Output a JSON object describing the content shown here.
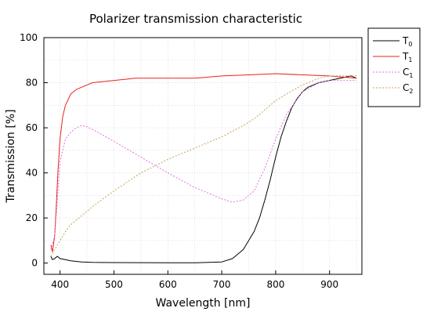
{
  "chart_data": {
    "type": "line",
    "title": "Polarizer transmission characteristic",
    "xlabel": "Wavelength [nm]",
    "ylabel": "Transmission [%]",
    "xlim": [
      370,
      960
    ],
    "ylim": [
      -5,
      100
    ],
    "x_ticks": [
      400,
      500,
      600,
      700,
      800,
      900
    ],
    "y_ticks": [
      0,
      20,
      40,
      60,
      80,
      100
    ],
    "grid": true,
    "legend_position": "right",
    "series": [
      {
        "name": "T0",
        "name_main": "T",
        "name_sub": "0",
        "color": "#000000",
        "dash": "solid",
        "x": [
          383,
          386,
          390,
          395,
          400,
          410,
          420,
          440,
          460,
          500,
          600,
          650,
          700,
          720,
          740,
          760,
          770,
          780,
          790,
          800,
          810,
          820,
          830,
          840,
          850,
          860,
          870,
          880,
          900,
          920,
          940,
          950
        ],
        "y": [
          3,
          1.5,
          2,
          3,
          2,
          1.5,
          1,
          0.5,
          0.3,
          0.2,
          0.1,
          0.1,
          0.5,
          2,
          6,
          14,
          20,
          28,
          37,
          47,
          56,
          63,
          69,
          73,
          76,
          78,
          79,
          80,
          81,
          82,
          83,
          82
        ]
      },
      {
        "name": "T1",
        "name_main": "T",
        "name_sub": "1",
        "color": "#e8231c",
        "dash": "solid",
        "x": [
          383,
          386,
          390,
          393,
          396,
          400,
          405,
          410,
          420,
          430,
          440,
          460,
          480,
          500,
          520,
          540,
          560,
          600,
          650,
          700,
          750,
          800,
          850,
          900,
          950
        ],
        "y": [
          8,
          5,
          12,
          25,
          40,
          55,
          65,
          70,
          75,
          77,
          78,
          80,
          80.5,
          81,
          81.5,
          82,
          82,
          82,
          82,
          83,
          83.5,
          84,
          83.5,
          83,
          82
        ]
      },
      {
        "name": "C1",
        "name_main": "C",
        "name_sub": "1",
        "color": "#e070e0",
        "dash": "2,2",
        "x": [
          383,
          390,
          395,
          400,
          410,
          420,
          430,
          440,
          450,
          470,
          500,
          550,
          600,
          650,
          700,
          720,
          740,
          760,
          780,
          800,
          820,
          850,
          880,
          900,
          950
        ],
        "y": [
          6,
          12,
          28,
          45,
          55,
          58,
          60,
          61,
          60.5,
          58,
          54,
          47,
          40,
          33.5,
          28.5,
          27,
          28,
          32,
          42,
          55,
          66,
          76,
          80,
          81,
          81
        ]
      },
      {
        "name": "C2",
        "name_main": "C",
        "name_sub": "2",
        "color": "#c8a25a",
        "dash": "2,2",
        "x": [
          383,
          390,
          400,
          410,
          420,
          440,
          460,
          500,
          550,
          600,
          650,
          700,
          740,
          760,
          780,
          800,
          820,
          850,
          880,
          900,
          950
        ],
        "y": [
          3,
          6,
          10,
          14,
          17,
          21,
          25,
          32,
          40,
          46,
          51,
          56,
          61,
          64,
          68,
          72,
          75,
          79,
          82,
          83,
          83
        ]
      }
    ]
  }
}
